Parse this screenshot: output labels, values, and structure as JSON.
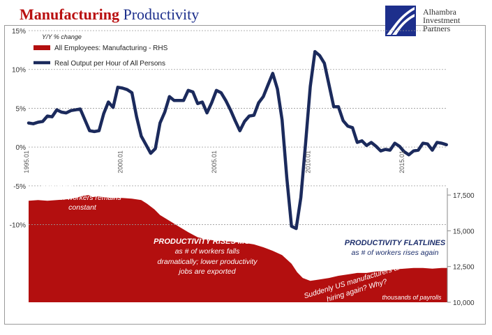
{
  "title": {
    "part1": "Manufacturing",
    "part2": "Productivity"
  },
  "logo": {
    "line1": "Alhambra",
    "line2": "Investment",
    "line3": "Partners"
  },
  "colors": {
    "productivity_line": "#1b2a5c",
    "employment_area": "#b30f0f",
    "title_red": "#b90f10",
    "title_blue": "#1d2f8c",
    "annotation_blue": "#1d2f6c"
  },
  "chart_data": {
    "type": "line",
    "subtitle": "Y/Y % change",
    "legend_placement": "top-left",
    "grid": true,
    "x": {
      "range": [
        1995.0,
        2017.3
      ],
      "tick_values": [
        1995.0,
        2000.0,
        2005.0,
        2010.0,
        2015.0
      ],
      "tick_labels": [
        "1995.01",
        "2000.01",
        "2005.01",
        "2010.01",
        "2015.01"
      ]
    },
    "y_left": {
      "range": [
        -20,
        15
      ],
      "tick_values": [
        15,
        10,
        5,
        0,
        -5,
        -10
      ],
      "tick_labels": [
        "15%",
        "10%",
        "5%",
        "0%",
        "-5%",
        "-10%"
      ]
    },
    "y_right": {
      "range": [
        10000,
        29000
      ],
      "tick_values": [
        17500,
        15000,
        12500,
        10000
      ],
      "tick_labels": [
        "17,500",
        "15,000",
        "12,500",
        "10,000"
      ]
    },
    "series": [
      {
        "name": "All Employees: Manufacturing - RHS",
        "kind": "area",
        "axis": "right",
        "color": "#b30f0f",
        "points": [
          [
            1995.0,
            17100
          ],
          [
            1995.5,
            17150
          ],
          [
            1996.0,
            17100
          ],
          [
            1996.5,
            17150
          ],
          [
            1997.0,
            17200
          ],
          [
            1997.5,
            17300
          ],
          [
            1997.9,
            17450
          ],
          [
            1998.2,
            17500
          ],
          [
            1998.4,
            17350
          ],
          [
            1998.7,
            17420
          ],
          [
            1999.0,
            17350
          ],
          [
            1999.5,
            17300
          ],
          [
            2000.0,
            17300
          ],
          [
            2000.5,
            17250
          ],
          [
            2001.0,
            17150
          ],
          [
            2001.3,
            16900
          ],
          [
            2001.7,
            16500
          ],
          [
            2002.0,
            16100
          ],
          [
            2002.5,
            15700
          ],
          [
            2003.0,
            15300
          ],
          [
            2003.5,
            14900
          ],
          [
            2004.0,
            14550
          ],
          [
            2004.5,
            14400
          ],
          [
            2005.0,
            14300
          ],
          [
            2005.5,
            14300
          ],
          [
            2006.0,
            14200
          ],
          [
            2006.5,
            14150
          ],
          [
            2007.0,
            14050
          ],
          [
            2007.5,
            13850
          ],
          [
            2008.0,
            13600
          ],
          [
            2008.5,
            13300
          ],
          [
            2009.0,
            12700
          ],
          [
            2009.3,
            12100
          ],
          [
            2009.6,
            11700
          ],
          [
            2010.0,
            11500
          ],
          [
            2010.5,
            11600
          ],
          [
            2011.0,
            11700
          ],
          [
            2011.5,
            11850
          ],
          [
            2012.0,
            11950
          ],
          [
            2012.5,
            12050
          ],
          [
            2013.0,
            12050
          ],
          [
            2013.5,
            12150
          ],
          [
            2014.0,
            12200
          ],
          [
            2014.5,
            12300
          ],
          [
            2015.0,
            12350
          ],
          [
            2015.5,
            12400
          ],
          [
            2016.0,
            12400
          ],
          [
            2016.5,
            12350
          ],
          [
            2017.0,
            12400
          ],
          [
            2017.3,
            12400
          ]
        ]
      },
      {
        "name": "Real Output per Hour of All Persons",
        "kind": "line",
        "axis": "left",
        "color": "#1b2a5c",
        "points": [
          [
            1995.0,
            3.1
          ],
          [
            1995.25,
            3.0
          ],
          [
            1995.5,
            3.2
          ],
          [
            1995.75,
            3.3
          ],
          [
            1996.0,
            4.0
          ],
          [
            1996.25,
            3.9
          ],
          [
            1996.5,
            4.8
          ],
          [
            1996.75,
            4.5
          ],
          [
            1997.0,
            4.4
          ],
          [
            1997.25,
            4.7
          ],
          [
            1997.5,
            4.8
          ],
          [
            1997.75,
            4.9
          ],
          [
            1998.0,
            3.5
          ],
          [
            1998.25,
            2.1
          ],
          [
            1998.5,
            2.0
          ],
          [
            1998.75,
            2.1
          ],
          [
            1999.0,
            4.3
          ],
          [
            1999.25,
            5.8
          ],
          [
            1999.5,
            5.1
          ],
          [
            1999.75,
            7.7
          ],
          [
            2000.0,
            7.6
          ],
          [
            2000.25,
            7.4
          ],
          [
            2000.5,
            7.0
          ],
          [
            2000.75,
            3.9
          ],
          [
            2001.0,
            1.4
          ],
          [
            2001.25,
            0.3
          ],
          [
            2001.5,
            -0.8
          ],
          [
            2001.75,
            -0.2
          ],
          [
            2002.0,
            3.1
          ],
          [
            2002.25,
            4.5
          ],
          [
            2002.5,
            6.5
          ],
          [
            2002.75,
            6.0
          ],
          [
            2003.0,
            6.0
          ],
          [
            2003.25,
            6.0
          ],
          [
            2003.5,
            7.3
          ],
          [
            2003.75,
            7.1
          ],
          [
            2004.0,
            5.6
          ],
          [
            2004.25,
            5.8
          ],
          [
            2004.5,
            4.4
          ],
          [
            2004.75,
            5.7
          ],
          [
            2005.0,
            7.3
          ],
          [
            2005.25,
            7.0
          ],
          [
            2005.5,
            6.0
          ],
          [
            2005.75,
            4.8
          ],
          [
            2006.0,
            3.4
          ],
          [
            2006.25,
            2.1
          ],
          [
            2006.5,
            3.3
          ],
          [
            2006.75,
            4.0
          ],
          [
            2007.0,
            4.1
          ],
          [
            2007.25,
            5.7
          ],
          [
            2007.5,
            6.5
          ],
          [
            2007.75,
            8.0
          ],
          [
            2008.0,
            9.5
          ],
          [
            2008.25,
            7.5
          ],
          [
            2008.5,
            3.5
          ],
          [
            2008.75,
            -4.0
          ],
          [
            2009.0,
            -10.2
          ],
          [
            2009.25,
            -10.5
          ],
          [
            2009.5,
            -6.5
          ],
          [
            2009.75,
            0.5
          ],
          [
            2010.0,
            7.8
          ],
          [
            2010.25,
            12.3
          ],
          [
            2010.5,
            11.8
          ],
          [
            2010.75,
            10.8
          ],
          [
            2011.0,
            8.0
          ],
          [
            2011.25,
            5.2
          ],
          [
            2011.5,
            5.2
          ],
          [
            2011.75,
            3.4
          ],
          [
            2012.0,
            2.7
          ],
          [
            2012.25,
            2.5
          ],
          [
            2012.5,
            0.6
          ],
          [
            2012.75,
            0.8
          ],
          [
            2013.0,
            0.2
          ],
          [
            2013.25,
            0.6
          ],
          [
            2013.5,
            0.1
          ],
          [
            2013.75,
            -0.5
          ],
          [
            2014.0,
            -0.3
          ],
          [
            2014.25,
            -0.4
          ],
          [
            2014.5,
            0.5
          ],
          [
            2014.75,
            0.1
          ],
          [
            2015.0,
            -0.6
          ],
          [
            2015.25,
            -1.0
          ],
          [
            2015.5,
            -0.5
          ],
          [
            2015.75,
            -0.4
          ],
          [
            2016.0,
            0.5
          ],
          [
            2016.25,
            0.4
          ],
          [
            2016.5,
            -0.4
          ],
          [
            2016.75,
            0.6
          ],
          [
            2017.0,
            0.5
          ],
          [
            2017.25,
            0.3
          ]
        ]
      }
    ],
    "annotations": [
      {
        "key": "rises_head",
        "text": "PRODUCTIVITY RISES",
        "style": "head-white"
      },
      {
        "key": "rises_sub1",
        "text": "as # of workers remains",
        "style": "sub-white"
      },
      {
        "key": "rises_sub2",
        "text": "constant",
        "style": "sub-white"
      },
      {
        "key": "more_head",
        "text": "PRODUCTIVITY RISES MORE",
        "style": "head-white"
      },
      {
        "key": "more_sub1",
        "text": "as # of workers falls",
        "style": "sub-white"
      },
      {
        "key": "more_sub2",
        "text": "dramatically; lower productivity",
        "style": "sub-white"
      },
      {
        "key": "more_sub3",
        "text": "jobs are exported",
        "style": "sub-white"
      },
      {
        "key": "flat_head",
        "text": "PRODUCTIVITY FLATLINES",
        "style": "head-blue"
      },
      {
        "key": "flat_sub1",
        "text": "as # of workers rises again",
        "style": "sub-blue"
      },
      {
        "key": "sudden1",
        "text": "Suddenly US manufacturers are",
        "style": "sub-white-rot"
      },
      {
        "key": "sudden2",
        "text": "hiring again? Why?",
        "style": "sub-white-rot"
      },
      {
        "key": "payrolls",
        "text": "thousands of payrolls",
        "style": "small-white"
      }
    ]
  }
}
